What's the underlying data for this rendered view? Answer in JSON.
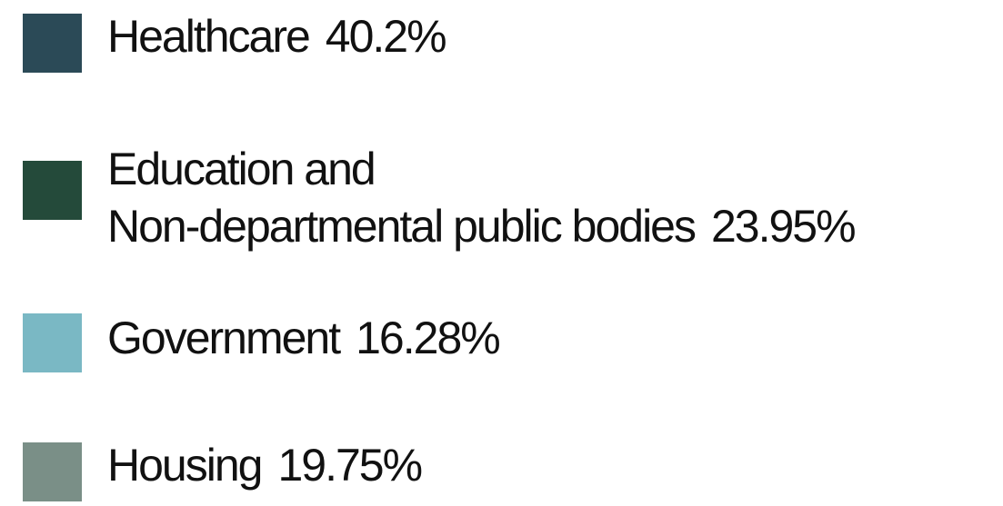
{
  "chart_data": {
    "type": "pie",
    "legend_placement": "left",
    "items": [
      {
        "name": "Healthcare",
        "value_label": "40.2%",
        "value": 40.2,
        "color": "#2b4a57"
      },
      {
        "name_lines": [
          "Education and",
          "Non-departmental public bodies"
        ],
        "name": "Education and Non-departmental public bodies",
        "value_label": "23.95%",
        "value": 23.95,
        "color": "#244a3a"
      },
      {
        "name": "Government",
        "value_label": "16.28%",
        "value": 16.28,
        "color": "#7ab8c4"
      },
      {
        "name": "Housing",
        "value_label": "19.75%",
        "value": 19.75,
        "color": "#7a8f87"
      }
    ]
  }
}
